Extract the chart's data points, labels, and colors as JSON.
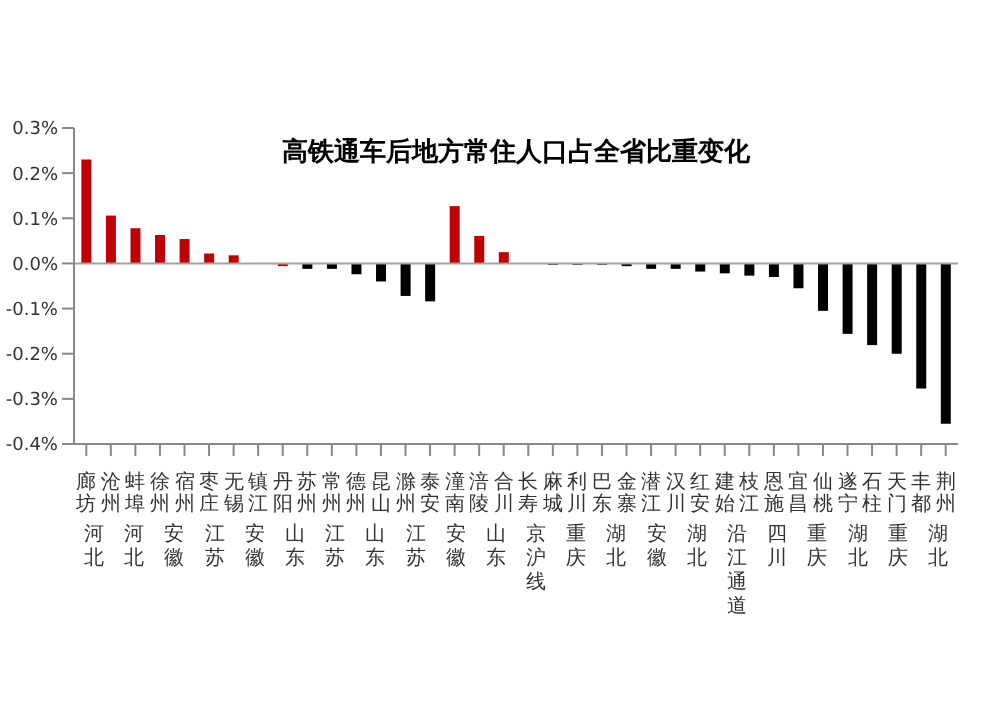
{
  "chart_data": {
    "type": "bar",
    "title": "高铁通车后地方常住人口占全省比重变化",
    "categories": [
      "廊坊",
      "沧州",
      "蚌埠",
      "徐州",
      "宿州",
      "枣庄",
      "无锡",
      "镇江",
      "丹阳",
      "苏州",
      "常州",
      "德州",
      "昆山",
      "滁州",
      "泰安",
      "潼南",
      "涪陵",
      "合川",
      "长寿",
      "麻城",
      "利川",
      "巴东",
      "金寨",
      "潜江",
      "汉川",
      "红安",
      "建始",
      "枝江",
      "恩施",
      "宜昌",
      "仙桃",
      "遂宁",
      "石柱",
      "天门",
      "丰都",
      "荆州"
    ],
    "values": [
      0.23,
      0.106,
      0.078,
      0.063,
      0.054,
      0.022,
      0.018,
      null,
      -0.006,
      -0.012,
      -0.012,
      -0.024,
      -0.04,
      -0.072,
      -0.084,
      0.127,
      0.061,
      0.025,
      null,
      -0.003,
      -0.003,
      -0.003,
      -0.006,
      -0.012,
      -0.012,
      -0.018,
      -0.022,
      -0.027,
      -0.03,
      -0.055,
      -0.105,
      -0.156,
      -0.181,
      -0.2,
      -0.277,
      -0.355
    ],
    "colors": [
      "#c00000",
      "#c00000",
      "#c00000",
      "#c00000",
      "#c00000",
      "#c00000",
      "#c00000",
      "#c00000",
      "#c00000",
      "#000000",
      "#000000",
      "#000000",
      "#000000",
      "#000000",
      "#000000",
      "#c00000",
      "#c00000",
      "#c00000",
      "#c00000",
      "#000000",
      "#000000",
      "#000000",
      "#000000",
      "#000000",
      "#000000",
      "#000000",
      "#000000",
      "#000000",
      "#000000",
      "#000000",
      "#000000",
      "#000000",
      "#000000",
      "#000000",
      "#000000",
      "#000000"
    ],
    "ylim": [
      -0.4,
      0.3
    ],
    "yticks": [
      {
        "value": -0.4,
        "label": "-0.4%"
      },
      {
        "value": -0.3,
        "label": "-0.3%"
      },
      {
        "value": -0.2,
        "label": "-0.2%"
      },
      {
        "value": -0.1,
        "label": "-0.1%"
      },
      {
        "value": 0,
        "label": "0.0%"
      },
      {
        "value": 0.1,
        "label": "0.1%"
      },
      {
        "value": 0.2,
        "label": "0.2%"
      },
      {
        "value": 0.3,
        "label": "0.3%"
      }
    ],
    "ref_lines": [
      {
        "axis": "y",
        "value": 0,
        "color": "#a0a0a0"
      }
    ],
    "annotations": [
      "河北",
      "河北",
      "安徽",
      "江苏",
      "安徽",
      "山东",
      "江苏",
      "山东",
      "江苏",
      "安徽",
      "山东",
      "京沪线",
      "重庆",
      "湖北",
      "安徽",
      "湖北",
      "沿江通道",
      "四川",
      "重庆",
      "湖北",
      "重庆",
      "湖北"
    ]
  }
}
